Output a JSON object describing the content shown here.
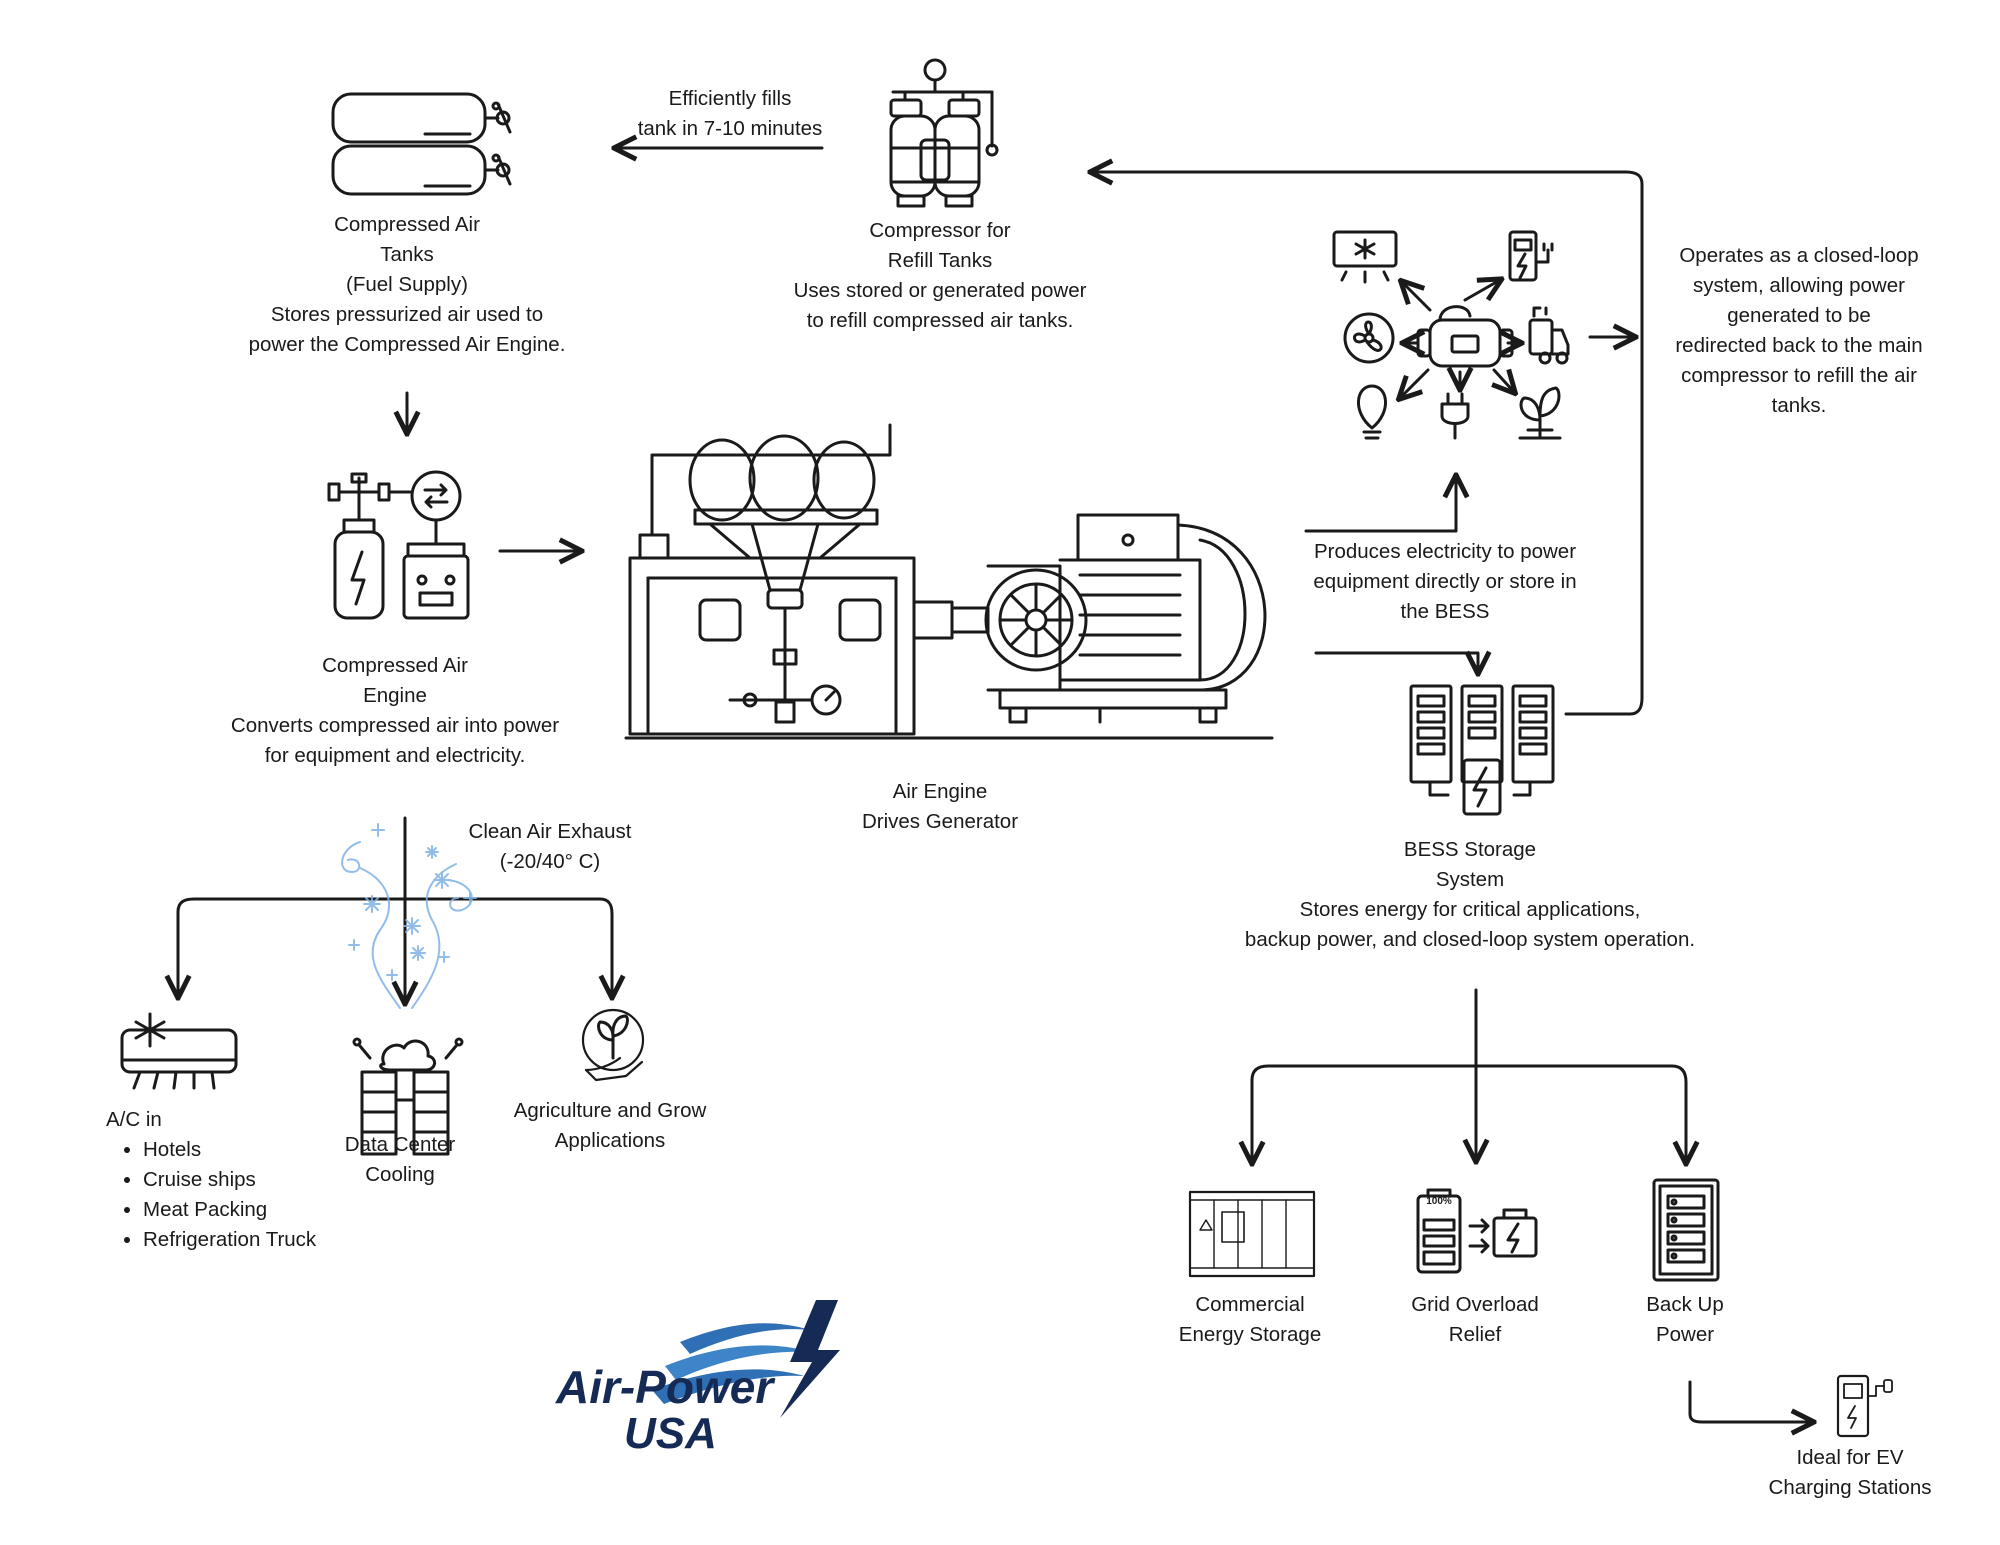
{
  "tanks": {
    "lines": [
      "Compressed Air",
      "Tanks",
      "(Fuel Supply)",
      "Stores pressurized air used to",
      "power the Compressed Air Engine."
    ]
  },
  "fills": {
    "lines": [
      "Efficiently fills",
      "tank in 7-10 minutes"
    ]
  },
  "compressor": {
    "lines": [
      "Compressor for",
      "Refill Tanks",
      "Uses stored or generated power",
      "to refill compressed air tanks."
    ]
  },
  "closed_loop": {
    "lines": [
      "Operates as a closed-loop",
      "system, allowing power",
      "generated to be",
      "redirected back to the main",
      "compressor to refill the air",
      "tanks."
    ]
  },
  "engine": {
    "lines": [
      "Compressed Air",
      "Engine",
      "Converts compressed air into power",
      "for equipment and electricity."
    ]
  },
  "produces": {
    "lines": [
      "Produces electricity to power",
      "equipment directly or store in",
      "the BESS"
    ]
  },
  "generator": {
    "lines": [
      "Air Engine",
      "Drives Generator"
    ]
  },
  "exhaust": {
    "lines": [
      "Clean Air Exhaust",
      "(-20/40° C)"
    ]
  },
  "bess": {
    "lines": [
      "BESS Storage",
      "System",
      "Stores energy for critical applications,",
      "backup power, and closed-loop system operation."
    ]
  },
  "ac": {
    "title": "A/C in",
    "items": [
      "Hotels",
      "Cruise ships",
      "Meat Packing",
      "Refrigeration Truck"
    ]
  },
  "datacenter": {
    "lines": [
      "Data Center",
      "Cooling"
    ]
  },
  "agri": {
    "lines": [
      "Agriculture and Grow",
      "Applications"
    ]
  },
  "commercial": {
    "lines": [
      "Commercial",
      "Energy Storage"
    ]
  },
  "grid": {
    "lines": [
      "Grid Overload",
      "Relief"
    ]
  },
  "backup": {
    "lines": [
      "Back Up",
      "Power"
    ]
  },
  "ev": {
    "lines": [
      "Ideal for EV",
      "Charging Stations"
    ]
  },
  "battery_icon_text": "100%",
  "logo": {
    "line1": "Air-Power",
    "line2": "USA"
  },
  "colors": {
    "stroke": "#1a1a1a",
    "logo_navy": "#152b55",
    "logo_blue": "#2f6fb5",
    "frost": "#7fb2e5"
  },
  "icons": [
    "gas-tanks-icon",
    "compressor-icon",
    "appliances-hub-icon",
    "engine-icon",
    "air-engine-generator-icon",
    "bess-icon",
    "snowflake-exhaust-icon",
    "air-conditioner-icon",
    "data-center-icon",
    "plant-hand-icon",
    "container-icon",
    "battery-transfer-icon",
    "backup-battery-icon",
    "ev-charger-icon"
  ]
}
